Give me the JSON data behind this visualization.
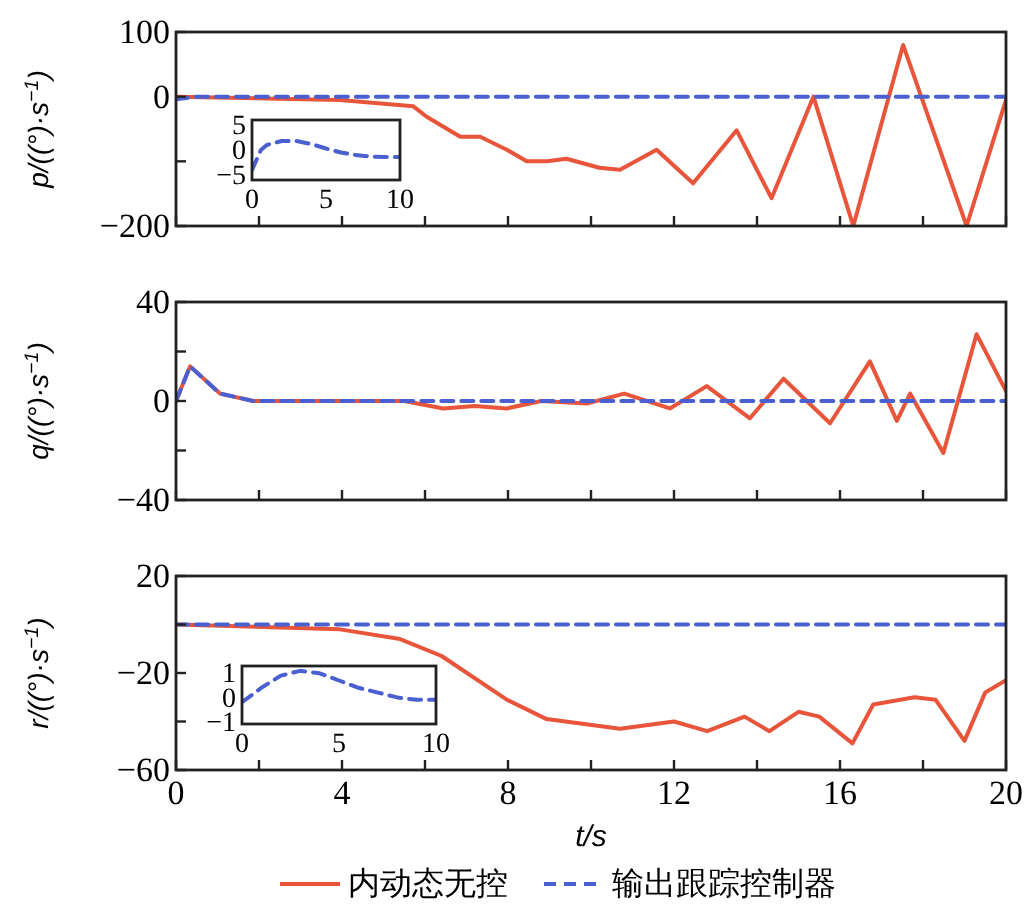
{
  "chart_data": [
    {
      "type": "line",
      "ylabel": "p/((°)·s$^{−1}$)",
      "xlim": [
        0,
        20
      ],
      "xticks": [
        {
          "value": 0,
          "label": null
        },
        {
          "value": 2,
          "label": null
        },
        {
          "value": 4,
          "label": null
        },
        {
          "value": 6,
          "label": null
        },
        {
          "value": 8,
          "label": null
        },
        {
          "value": 10,
          "label": null
        },
        {
          "value": 12,
          "label": null
        },
        {
          "value": 14,
          "label": null
        },
        {
          "value": 16,
          "label": null
        },
        {
          "value": 18,
          "label": null
        },
        {
          "value": 20,
          "label": null
        }
      ],
      "ylim": [
        -200,
        100
      ],
      "yticks": [
        -200,
        {
          "value": -100,
          "label": null
        },
        0,
        100
      ],
      "tick_labels": "y",
      "series": [
        {
          "color": "#e8553a",
          "line_style": "solid",
          "x": [
            0,
            3.95,
            5.72,
            6.04,
            6.85,
            7.33,
            7.97,
            8.45,
            8.93,
            9.41,
            10.2,
            10.7,
            11.58,
            12.46,
            13.51,
            14.35,
            15.36,
            16.32,
            17.52,
            19.05,
            20
          ],
          "values": [
            0,
            -5,
            -15,
            -31,
            -62,
            -62,
            -82,
            -100,
            -100,
            -96,
            -110,
            -113,
            -82,
            -134,
            -52,
            -157,
            0,
            -200,
            80,
            -200,
            -5
          ]
        },
        {
          "color": "#4a5fd0",
          "line_style": "dashed",
          "x": [
            0,
            0.5,
            20
          ],
          "values": [
            -4,
            0,
            0
          ]
        }
      ]
    },
    {
      "type": "line",
      "xlim": [
        0,
        10
      ],
      "xticks": [
        0,
        5,
        10
      ],
      "ylim": [
        -6,
        6
      ],
      "yticks": [
        -5,
        0,
        5
      ],
      "series": [
        {
          "color": "#4a5fd0",
          "line_style": "dashed",
          "x": [
            0,
            0.3,
            0.6,
            1,
            2,
            3,
            4,
            5,
            6,
            7,
            8,
            9,
            10
          ],
          "values": [
            -4,
            -2,
            0,
            1,
            1.8,
            1.8,
            1.2,
            0.3,
            -0.5,
            -1,
            -1.3,
            -1.4,
            -1.4
          ]
        }
      ]
    },
    {
      "type": "line",
      "ylabel": "q/((°)·s$^{−1}$)",
      "xlim": [
        0,
        20
      ],
      "xticks": [
        {
          "value": 0,
          "label": null
        },
        {
          "value": 2,
          "label": null
        },
        {
          "value": 4,
          "label": null
        },
        {
          "value": 6,
          "label": null
        },
        {
          "value": 8,
          "label": null
        },
        {
          "value": 10,
          "label": null
        },
        {
          "value": 12,
          "label": null
        },
        {
          "value": 14,
          "label": null
        },
        {
          "value": 16,
          "label": null
        },
        {
          "value": 18,
          "label": null
        },
        {
          "value": 20,
          "label": null
        }
      ],
      "ylim": [
        -40,
        40
      ],
      "yticks": [
        -40,
        {
          "value": -20,
          "label": null
        },
        0,
        {
          "value": 20,
          "label": null
        },
        40
      ],
      "tick_labels": "y",
      "series": [
        {
          "color": "#e8553a",
          "line_style": "solid",
          "x": [
            0,
            0.34,
            1.06,
            1.86,
            5.5,
            6.44,
            7.2,
            7.97,
            8.8,
            9.9,
            10.8,
            11.9,
            12.79,
            13.83,
            14.64,
            15.76,
            16.72,
            17.37,
            17.69,
            18.49,
            19.29,
            20
          ],
          "values": [
            0,
            14,
            3,
            0,
            0,
            -3,
            -2,
            -3,
            0,
            -1,
            3,
            -3,
            6,
            -7,
            9,
            -9,
            16,
            -8,
            3,
            -21,
            27,
            4
          ]
        },
        {
          "color": "#4a5fd0",
          "line_style": "dashed",
          "x": [
            0,
            0.34,
            1.06,
            1.86,
            20
          ],
          "values": [
            0,
            14,
            3,
            0,
            0
          ]
        }
      ]
    },
    {
      "type": "line",
      "ylabel": "r/((°)·s$^{−1}$)",
      "xlabel": "t/s",
      "xlim": [
        0,
        20
      ],
      "xticks": [
        0,
        {
          "value": 2,
          "label": null
        },
        4,
        {
          "value": 6,
          "label": null
        },
        8,
        {
          "value": 10,
          "label": null
        },
        12,
        {
          "value": 14,
          "label": null
        },
        16,
        {
          "value": 18,
          "label": null
        },
        20
      ],
      "ylim": [
        -60,
        20
      ],
      "yticks": [
        -60,
        {
          "value": -40,
          "label": null
        },
        -20,
        {
          "value": 0,
          "label": null
        },
        20
      ],
      "legend": "bottom",
      "series": [
        {
          "name": "内动态无控",
          "color": "#e8553a",
          "line_style": "solid",
          "x": [
            0,
            3.95,
            5.4,
            6.4,
            7.97,
            8.93,
            10.7,
            12.0,
            12.8,
            13.7,
            14.3,
            15.0,
            15.5,
            16.3,
            16.8,
            17.8,
            18.3,
            19.0,
            19.5,
            20
          ],
          "values": [
            0,
            -2,
            -6,
            -13,
            -31,
            -39,
            -43,
            -40,
            -44,
            -38,
            -44,
            -36,
            -38,
            -49,
            -33,
            -30,
            -31,
            -48,
            -28,
            -23
          ]
        },
        {
          "name": "输出跟踪控制器",
          "color": "#4a5fd0",
          "line_style": "dashed",
          "x": [
            0,
            20
          ],
          "values": [
            0,
            0
          ]
        }
      ]
    },
    {
      "type": "line",
      "xlim": [
        0,
        10
      ],
      "xticks": [
        0,
        5,
        10
      ],
      "ylim": [
        -1.1,
        1.3
      ],
      "yticks": [
        -1,
        0,
        1
      ],
      "series": [
        {
          "color": "#4a5fd0",
          "line_style": "dashed",
          "x": [
            0,
            1,
            2,
            3,
            4,
            5,
            6,
            7,
            8,
            9,
            10
          ],
          "values": [
            -0.2,
            0.4,
            0.9,
            1.1,
            1,
            0.7,
            0.4,
            0.2,
            0,
            -0.1,
            -0.1
          ]
        }
      ]
    }
  ]
}
